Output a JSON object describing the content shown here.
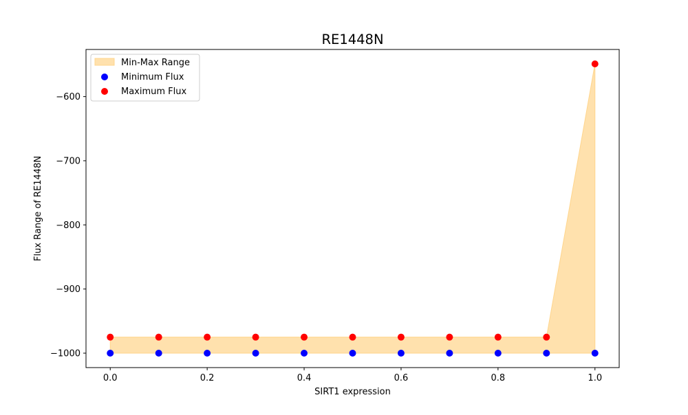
{
  "chart_data": {
    "type": "scatter",
    "title": "RE1448N",
    "xlabel": "SIRT1 expression",
    "ylabel": "Flux Range of RE1448N",
    "xlim": [
      -0.05,
      1.05
    ],
    "ylim": [
      -1022.5,
      -526.5
    ],
    "x": [
      0.0,
      0.1,
      0.2,
      0.3,
      0.4,
      0.5,
      0.6,
      0.7,
      0.8,
      0.9,
      1.0
    ],
    "series": [
      {
        "name": "Minimum Flux",
        "color": "#0000ff",
        "values": [
          -1000,
          -1000,
          -1000,
          -1000,
          -1000,
          -1000,
          -1000,
          -1000,
          -1000,
          -1000,
          -1000
        ]
      },
      {
        "name": "Maximum Flux",
        "color": "#ff0000",
        "values": [
          -975,
          -975,
          -975,
          -975,
          -975,
          -975,
          -975,
          -975,
          -975,
          -975,
          -549
        ]
      }
    ],
    "fill": {
      "name": "Min-Max Range",
      "color": "#ffe1ad",
      "edge_color": "#ffd58c"
    },
    "xticks": [
      0.0,
      0.2,
      0.4,
      0.6,
      0.8,
      1.0
    ],
    "xtick_labels": [
      "0.0",
      "0.2",
      "0.4",
      "0.6",
      "0.8",
      "1.0"
    ],
    "yticks": [
      -1000,
      -900,
      -800,
      -700,
      -600
    ],
    "ytick_labels": [
      "−1000",
      "−900",
      "−800",
      "−700",
      "−600"
    ],
    "grid": false,
    "legend_position": "upper-left"
  }
}
